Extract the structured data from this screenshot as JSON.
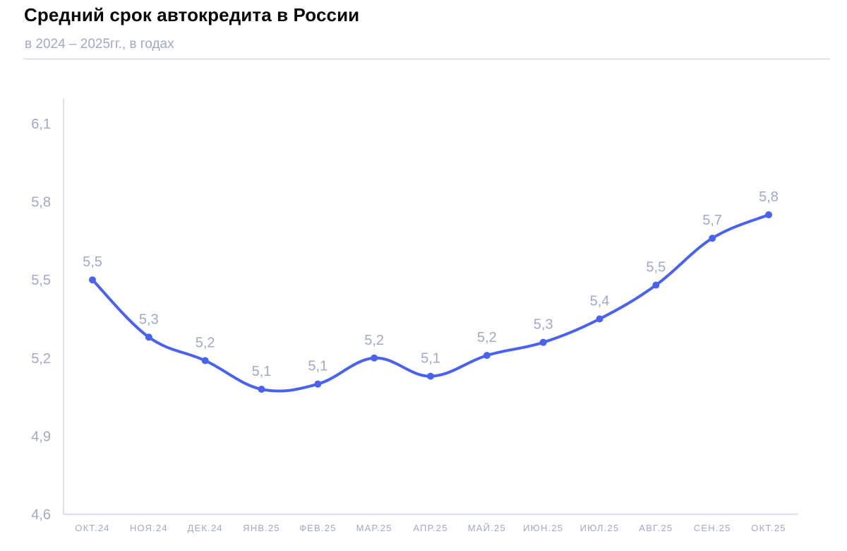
{
  "chart_data": {
    "type": "line",
    "title": "Средний срок автокредита в России",
    "subtitle": "в 2024 – 2025гг., в годах",
    "categories": [
      "ОКТ.24",
      "НОЯ.24",
      "ДЕК.24",
      "ЯНВ.25",
      "ФЕВ.25",
      "МАР.25",
      "АПР.25",
      "МАЙ.25",
      "ИЮН.25",
      "ИЮЛ.25",
      "АВГ.25",
      "СЕН.25",
      "ОКТ.25"
    ],
    "values": [
      5.5,
      5.28,
      5.19,
      5.08,
      5.1,
      5.2,
      5.13,
      5.21,
      5.26,
      5.35,
      5.48,
      5.66,
      5.75
    ],
    "data_labels": [
      "5,5",
      "5,3",
      "5,2",
      "5,1",
      "5,1",
      "5,2",
      "5,1",
      "5,2",
      "5,3",
      "5,4",
      "5,5",
      "5,7",
      "5,8"
    ],
    "yticks": [
      4.6,
      4.9,
      5.2,
      5.5,
      5.8,
      6.1
    ],
    "ytick_labels": [
      "4,6",
      "4,9",
      "5,2",
      "5,5",
      "5,8",
      "6,1"
    ],
    "ylim": [
      4.6,
      6.1
    ],
    "xlabel": "",
    "ylabel": "",
    "grid": false,
    "line_color": "#4a62f2",
    "axis_color": "#c9cbe0",
    "label_color": "#a3a7cc"
  }
}
